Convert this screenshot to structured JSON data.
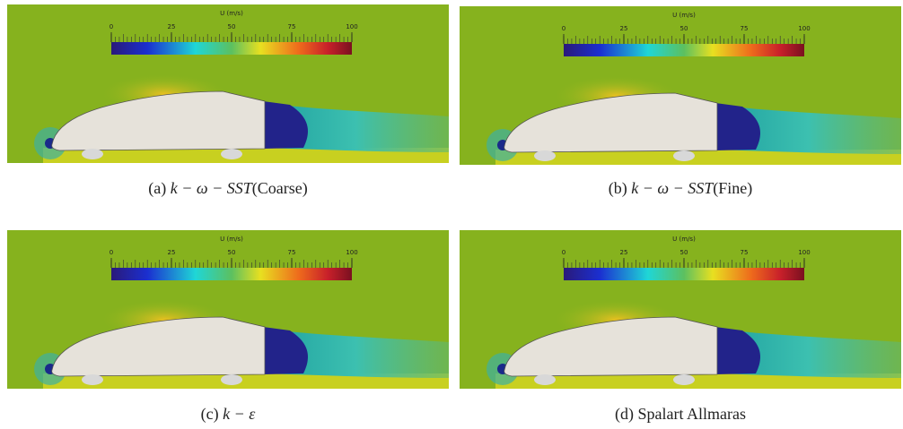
{
  "colorbar": {
    "title": "U (m/s)",
    "ticks": [
      0,
      25,
      50,
      75,
      100
    ]
  },
  "panels": [
    {
      "tag": "(a)",
      "math": "k − ω − SST",
      "text": "(Coarse)"
    },
    {
      "tag": "(b)",
      "math": "k − ω − SST",
      "text": "(Fine)"
    },
    {
      "tag": "(c)",
      "math": "k − ε",
      "text": ""
    },
    {
      "tag": "(d)",
      "math": "",
      "text": "Spalart Allmaras"
    }
  ]
}
